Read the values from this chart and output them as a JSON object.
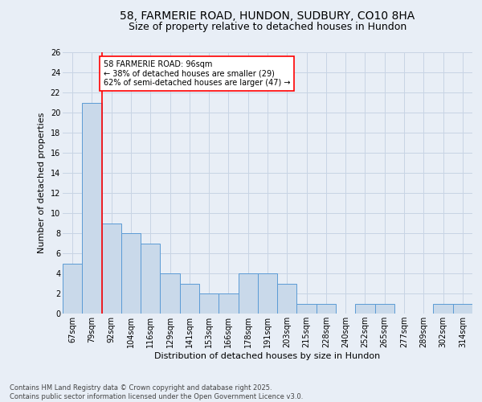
{
  "title_line1": "58, FARMERIE ROAD, HUNDON, SUDBURY, CO10 8HA",
  "title_line2": "Size of property relative to detached houses in Hundon",
  "xlabel": "Distribution of detached houses by size in Hundon",
  "ylabel": "Number of detached properties",
  "footer": "Contains HM Land Registry data © Crown copyright and database right 2025.\nContains public sector information licensed under the Open Government Licence v3.0.",
  "categories": [
    "67sqm",
    "79sqm",
    "92sqm",
    "104sqm",
    "116sqm",
    "129sqm",
    "141sqm",
    "153sqm",
    "166sqm",
    "178sqm",
    "191sqm",
    "203sqm",
    "215sqm",
    "228sqm",
    "240sqm",
    "252sqm",
    "265sqm",
    "277sqm",
    "289sqm",
    "302sqm",
    "314sqm"
  ],
  "values": [
    5,
    21,
    9,
    8,
    7,
    4,
    3,
    2,
    2,
    4,
    4,
    3,
    1,
    1,
    0,
    1,
    1,
    0,
    0,
    1,
    1
  ],
  "bar_color": "#c9d9ea",
  "bar_edge_color": "#5b9bd5",
  "annotation_text": "58 FARMERIE ROAD: 96sqm\n← 38% of detached houses are smaller (29)\n62% of semi-detached houses are larger (47) →",
  "annotation_box_color": "white",
  "annotation_box_edge_color": "red",
  "vline_color": "red",
  "ylim": [
    0,
    26
  ],
  "yticks": [
    0,
    2,
    4,
    6,
    8,
    10,
    12,
    14,
    16,
    18,
    20,
    22,
    24,
    26
  ],
  "grid_color": "#c8d4e4",
  "bg_color": "#e8eef6",
  "title_fontsize": 10,
  "subtitle_fontsize": 9,
  "label_fontsize": 8,
  "tick_fontsize": 7,
  "annotation_fontsize": 7,
  "footer_fontsize": 6
}
